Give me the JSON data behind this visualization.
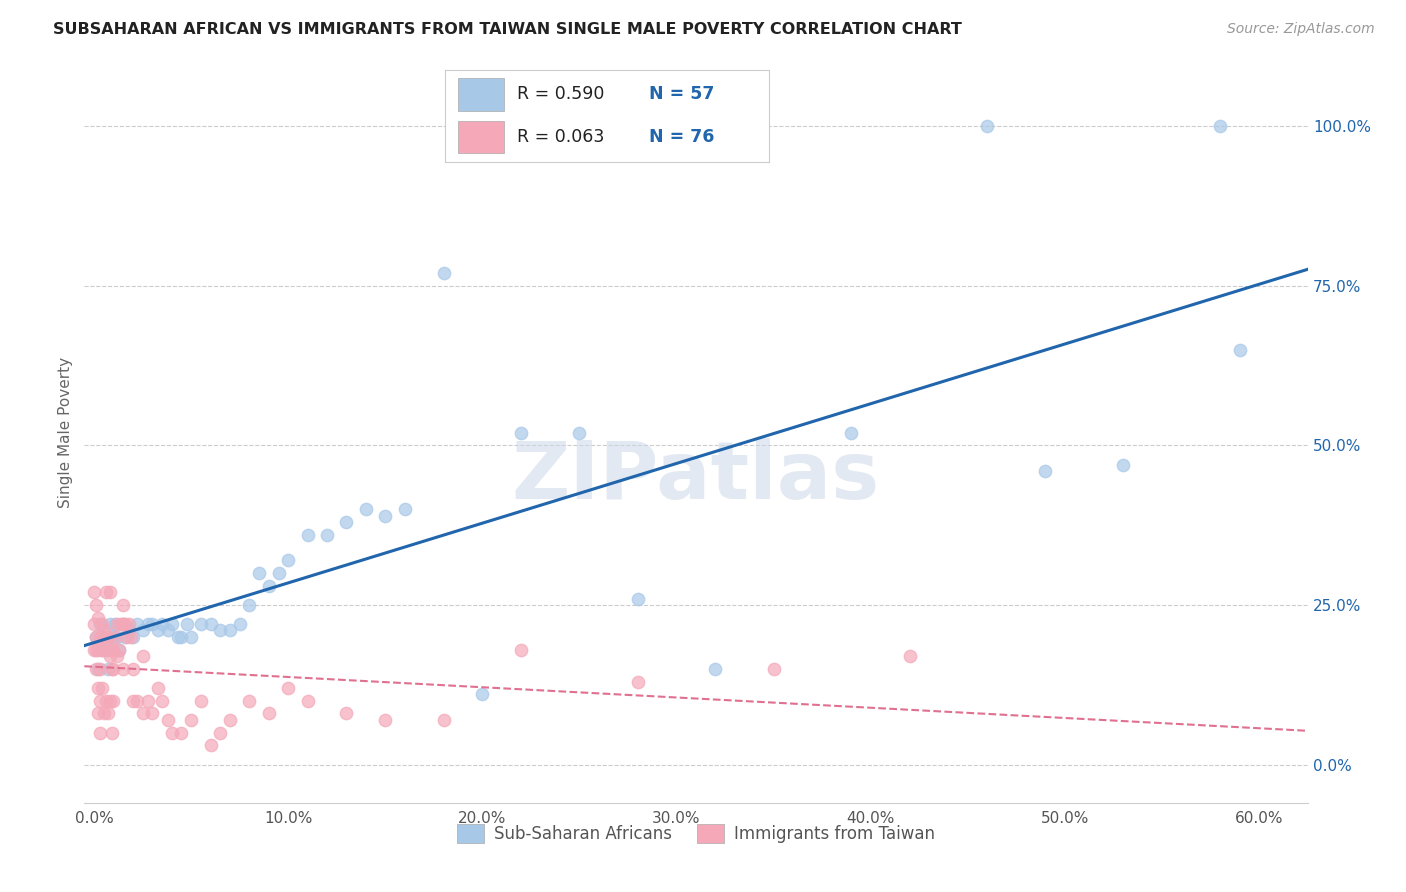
{
  "title": "SUBSAHARAN AFRICAN VS IMMIGRANTS FROM TAIWAN SINGLE MALE POVERTY CORRELATION CHART",
  "source": "Source: ZipAtlas.com",
  "xlabel_ticks": [
    "0.0%",
    "10.0%",
    "20.0%",
    "30.0%",
    "40.0%",
    "50.0%",
    "60.0%"
  ],
  "xlabel_vals": [
    0.0,
    0.1,
    0.2,
    0.3,
    0.4,
    0.5,
    0.6
  ],
  "ylabel_ticks": [
    "0.0%",
    "25.0%",
    "50.0%",
    "75.0%",
    "100.0%"
  ],
  "ylabel_vals": [
    0.0,
    0.25,
    0.5,
    0.75,
    1.0
  ],
  "ylabel_label": "Single Male Poverty",
  "xlim": [
    -0.005,
    0.625
  ],
  "ylim": [
    -0.06,
    1.1
  ],
  "blue_color": "#a8c8e8",
  "pink_color": "#f4a8b8",
  "blue_line_color": "#2166ac",
  "pink_line_color": "#e07090",
  "blue_r": "0.590",
  "blue_n": "57",
  "pink_r": "0.063",
  "pink_n": "76",
  "legend_label1": "Sub-Saharan Africans",
  "legend_label2": "Immigrants from Taiwan",
  "watermark": "ZIPatlas",
  "blue_x": [
    0.001,
    0.002,
    0.003,
    0.004,
    0.005,
    0.006,
    0.007,
    0.008,
    0.009,
    0.01,
    0.011,
    0.012,
    0.013,
    0.015,
    0.016,
    0.018,
    0.02,
    0.022,
    0.025,
    0.028,
    0.03,
    0.033,
    0.035,
    0.038,
    0.04,
    0.043,
    0.045,
    0.048,
    0.05,
    0.055,
    0.06,
    0.065,
    0.07,
    0.075,
    0.08,
    0.085,
    0.09,
    0.095,
    0.1,
    0.11,
    0.12,
    0.13,
    0.14,
    0.15,
    0.16,
    0.18,
    0.2,
    0.22,
    0.25,
    0.28,
    0.32,
    0.39,
    0.46,
    0.49,
    0.53,
    0.58,
    0.59
  ],
  "blue_y": [
    0.2,
    0.15,
    0.22,
    0.18,
    0.2,
    0.18,
    0.15,
    0.22,
    0.2,
    0.2,
    0.22,
    0.2,
    0.18,
    0.22,
    0.2,
    0.21,
    0.2,
    0.22,
    0.21,
    0.22,
    0.22,
    0.21,
    0.22,
    0.21,
    0.22,
    0.2,
    0.2,
    0.22,
    0.2,
    0.22,
    0.22,
    0.21,
    0.21,
    0.22,
    0.25,
    0.3,
    0.28,
    0.3,
    0.32,
    0.36,
    0.36,
    0.38,
    0.4,
    0.39,
    0.4,
    0.77,
    0.11,
    0.52,
    0.52,
    0.26,
    0.15,
    0.52,
    1.0,
    0.46,
    0.47,
    1.0,
    0.65
  ],
  "pink_x": [
    0.0,
    0.0,
    0.001,
    0.001,
    0.001,
    0.002,
    0.002,
    0.002,
    0.003,
    0.003,
    0.003,
    0.004,
    0.004,
    0.005,
    0.005,
    0.006,
    0.006,
    0.007,
    0.007,
    0.008,
    0.008,
    0.009,
    0.009,
    0.01,
    0.01,
    0.011,
    0.012,
    0.013,
    0.014,
    0.015,
    0.015,
    0.016,
    0.017,
    0.018,
    0.019,
    0.02,
    0.022,
    0.025,
    0.028,
    0.03,
    0.033,
    0.035,
    0.038,
    0.04,
    0.045,
    0.05,
    0.055,
    0.06,
    0.065,
    0.07,
    0.08,
    0.09,
    0.1,
    0.11,
    0.13,
    0.15,
    0.18,
    0.22,
    0.28,
    0.35,
    0.42,
    0.0,
    0.001,
    0.002,
    0.003,
    0.004,
    0.005,
    0.006,
    0.007,
    0.008,
    0.009,
    0.01,
    0.012,
    0.015,
    0.02,
    0.025
  ],
  "pink_y": [
    0.18,
    0.22,
    0.18,
    0.15,
    0.2,
    0.18,
    0.12,
    0.08,
    0.15,
    0.1,
    0.05,
    0.18,
    0.12,
    0.2,
    0.08,
    0.27,
    0.1,
    0.2,
    0.08,
    0.27,
    0.1,
    0.18,
    0.05,
    0.18,
    0.1,
    0.2,
    0.22,
    0.18,
    0.22,
    0.25,
    0.22,
    0.22,
    0.2,
    0.22,
    0.2,
    0.1,
    0.1,
    0.08,
    0.1,
    0.08,
    0.12,
    0.1,
    0.07,
    0.05,
    0.05,
    0.07,
    0.1,
    0.03,
    0.05,
    0.07,
    0.1,
    0.08,
    0.12,
    0.1,
    0.08,
    0.07,
    0.07,
    0.18,
    0.13,
    0.15,
    0.17,
    0.27,
    0.25,
    0.23,
    0.2,
    0.22,
    0.21,
    0.2,
    0.18,
    0.17,
    0.15,
    0.15,
    0.17,
    0.15,
    0.15,
    0.17
  ]
}
